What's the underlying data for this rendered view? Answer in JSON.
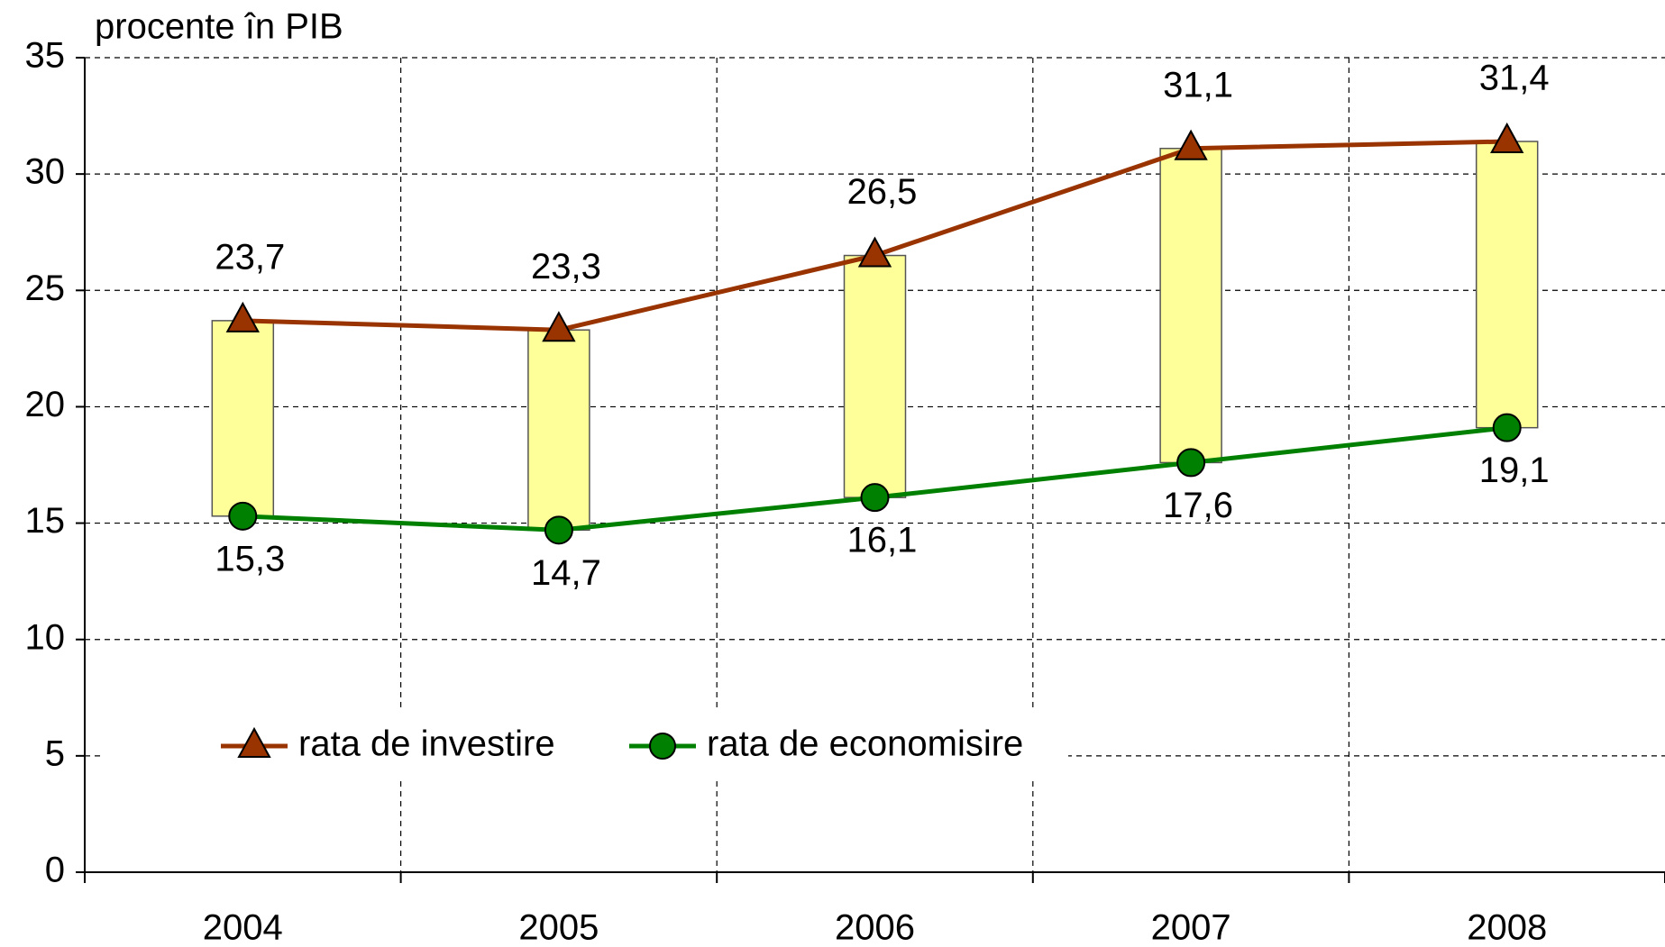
{
  "chart_data": {
    "type": "line",
    "y_label": "procente în PIB",
    "categories": [
      "2004",
      "2005",
      "2006",
      "2007",
      "2008"
    ],
    "series": [
      {
        "name": "rata de investire",
        "color": "#993300",
        "marker": "triangle",
        "values": [
          23.7,
          23.3,
          26.5,
          31.1,
          31.4
        ],
        "value_labels": [
          "23,7",
          "23,3",
          "26,5",
          "31,1",
          "31,4"
        ]
      },
      {
        "name": "rata de economisire",
        "color": "#008000",
        "marker": "circle",
        "values": [
          15.3,
          14.7,
          16.1,
          17.6,
          19.1
        ],
        "value_labels": [
          "15,3",
          "14,7",
          "16,1",
          "17,6",
          "19,1"
        ]
      }
    ],
    "range_bar_color": "#ffff99",
    "ylim": [
      0,
      35
    ],
    "yticks": [
      0,
      5,
      10,
      15,
      20,
      25,
      30,
      35
    ],
    "grid": true
  }
}
